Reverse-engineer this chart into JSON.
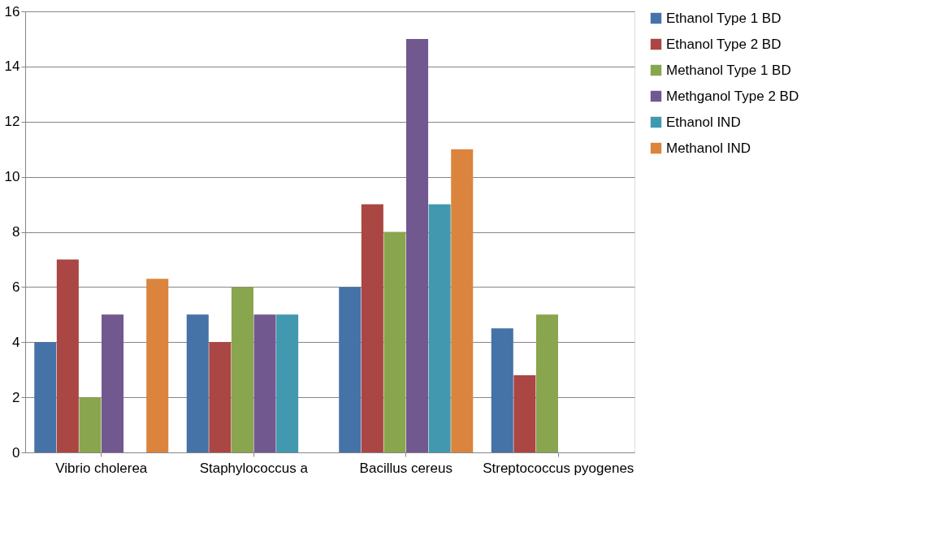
{
  "chart_data": {
    "type": "bar",
    "categories": [
      "Vibrio cholerea",
      "Staphylococcus a",
      "Bacillus cereus",
      "Streptococcus pyogenes"
    ],
    "series": [
      {
        "name": "Ethanol Type 1 BD",
        "color": "#4572a7",
        "values": [
          4,
          5,
          6,
          4.5
        ]
      },
      {
        "name": "Ethanol Type 2 BD",
        "color": "#aa4643",
        "values": [
          7,
          4,
          9,
          2.8
        ]
      },
      {
        "name": "Methanol Type 1 BD",
        "color": "#89a54e",
        "values": [
          2,
          6,
          8,
          5
        ]
      },
      {
        "name": "Methganol Type 2 BD",
        "color": "#71588f",
        "values": [
          5,
          5,
          15,
          null
        ]
      },
      {
        "name": "Ethanol IND",
        "color": "#4198af",
        "values": [
          null,
          5,
          9,
          null
        ]
      },
      {
        "name": "Methanol IND",
        "color": "#db843d",
        "values": [
          6.3,
          null,
          11,
          null
        ]
      }
    ],
    "ylim": [
      0,
      16
    ],
    "yticks": [
      0,
      2,
      4,
      6,
      8,
      10,
      12,
      14,
      16
    ],
    "grid": "y",
    "legend": "right"
  }
}
